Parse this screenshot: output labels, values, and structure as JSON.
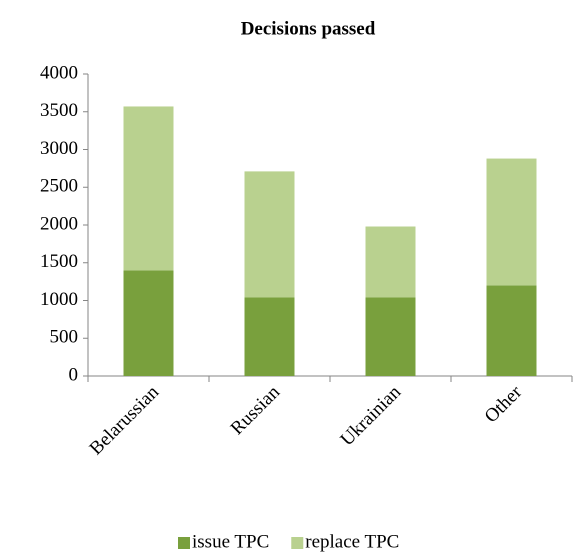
{
  "chart_data": {
    "type": "stacked_bar",
    "title": "Decisions passed",
    "categories": [
      "Belarussian",
      "Russian",
      "Ukrainian",
      "Other"
    ],
    "series": [
      {
        "name": "issue TPC",
        "color": "#79a03d",
        "values": [
          1400,
          1040,
          1040,
          1200
        ]
      },
      {
        "name": "replace TPC",
        "color": "#b9d18f",
        "values": [
          2170,
          1670,
          940,
          1680
        ]
      }
    ],
    "ylim": [
      0,
      4000
    ],
    "yticks": [
      0,
      500,
      1000,
      1500,
      2000,
      2500,
      3000,
      3500,
      4000
    ],
    "legend": "bottom"
  }
}
